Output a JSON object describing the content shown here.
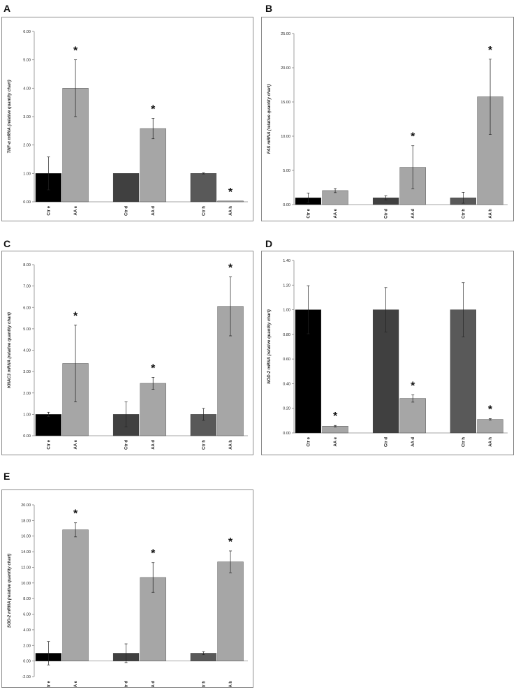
{
  "chart_data": [
    {
      "panel": "A",
      "type": "bar",
      "categories": [
        "Ctr e",
        "AA e",
        "Ctr d",
        "AA d",
        "Ctr h",
        "AA h"
      ],
      "values": [
        1.0,
        4.0,
        1.0,
        2.58,
        1.0,
        0.03
      ],
      "errors": [
        0.58,
        1.0,
        0.0,
        0.36,
        0.02,
        0.0
      ],
      "significant": [
        false,
        true,
        false,
        true,
        false,
        true
      ],
      "ylabel": "TNF-α mRNA (relative quantity chart)",
      "ylim": [
        0,
        6
      ],
      "ticks": [
        "0.00",
        "1.00",
        "2.00",
        "3.00",
        "4.00",
        "5.00",
        "6.00"
      ],
      "colors": [
        "#000000",
        "#a6a6a6",
        "#404040",
        "#a6a6a6",
        "#595959",
        "#a6a6a6"
      ]
    },
    {
      "panel": "B",
      "type": "bar",
      "categories": [
        "Ctr e",
        "AA e",
        "Ctr d",
        "AA d",
        "Ctr h",
        "AA h"
      ],
      "values": [
        1.0,
        2.05,
        1.0,
        5.45,
        1.0,
        15.75
      ],
      "errors": [
        0.7,
        0.3,
        0.3,
        3.15,
        0.8,
        5.5
      ],
      "significant": [
        false,
        false,
        false,
        true,
        false,
        true
      ],
      "ylabel": "FAS mRNA (relative quantity chart)",
      "ylim": [
        0,
        25
      ],
      "ticks": [
        "0.00",
        "5.00",
        "10.00",
        "15.00",
        "20.00",
        "25.00"
      ],
      "colors": [
        "#000000",
        "#a6a6a6",
        "#404040",
        "#a6a6a6",
        "#595959",
        "#a6a6a6"
      ]
    },
    {
      "panel": "C",
      "type": "bar",
      "categories": [
        "Ctr e",
        "AA e",
        "Ctr d",
        "AA d",
        "Ctr h",
        "AA h"
      ],
      "values": [
        1.0,
        3.38,
        1.0,
        2.45,
        1.0,
        6.05
      ],
      "errors": [
        0.1,
        1.8,
        0.58,
        0.28,
        0.28,
        1.38
      ],
      "significant": [
        false,
        true,
        false,
        true,
        false,
        true
      ],
      "ylabel": "KNAC3 mRNA (relative quantity chart)",
      "ylim": [
        0,
        8
      ],
      "ticks": [
        "0.00",
        "1.00",
        "2.00",
        "3.00",
        "4.00",
        "5.00",
        "6.00",
        "7.00",
        "8.00"
      ],
      "colors": [
        "#000000",
        "#a6a6a6",
        "#404040",
        "#a6a6a6",
        "#595959",
        "#a6a6a6"
      ]
    },
    {
      "panel": "D",
      "type": "bar",
      "categories": [
        "Ctr e",
        "AA e",
        "Ctr d",
        "AA d",
        "Ctr h",
        "AA h"
      ],
      "values": [
        1.0,
        0.055,
        1.0,
        0.28,
        1.0,
        0.11
      ],
      "errors": [
        0.195,
        0.006,
        0.18,
        0.03,
        0.22,
        0.006
      ],
      "significant": [
        false,
        true,
        false,
        true,
        false,
        true
      ],
      "ylabel": "NOD-2 mRNA (relative quantity chart)",
      "ylim": [
        0,
        1.4
      ],
      "ticks": [
        "0.00",
        "0.20",
        "0.40",
        "0.60",
        "0.80",
        "1.00",
        "1.20",
        "1.40"
      ],
      "colors": [
        "#000000",
        "#a6a6a6",
        "#404040",
        "#a6a6a6",
        "#595959",
        "#a6a6a6"
      ]
    },
    {
      "panel": "E",
      "type": "bar",
      "categories": [
        "Ctr e",
        "AA e",
        "Ctr d",
        "AA d",
        "Ctr h",
        "AA h"
      ],
      "values": [
        1.0,
        16.8,
        1.0,
        10.7,
        1.0,
        12.7
      ],
      "errors": [
        1.5,
        0.9,
        1.2,
        1.9,
        0.2,
        1.4
      ],
      "significant": [
        false,
        true,
        false,
        true,
        false,
        true
      ],
      "ylabel": "SOD-2 mRNA (relative quantity chart)",
      "ylim": [
        -2,
        20
      ],
      "ticks": [
        "-2.00",
        "0.00",
        "2.00",
        "4.00",
        "6.00",
        "8.00",
        "10.00",
        "12.00",
        "14.00",
        "16.00",
        "18.00",
        "20.00"
      ],
      "colors": [
        "#000000",
        "#a6a6a6",
        "#404040",
        "#a6a6a6",
        "#595959",
        "#a6a6a6"
      ]
    }
  ],
  "significance_marker": "*"
}
